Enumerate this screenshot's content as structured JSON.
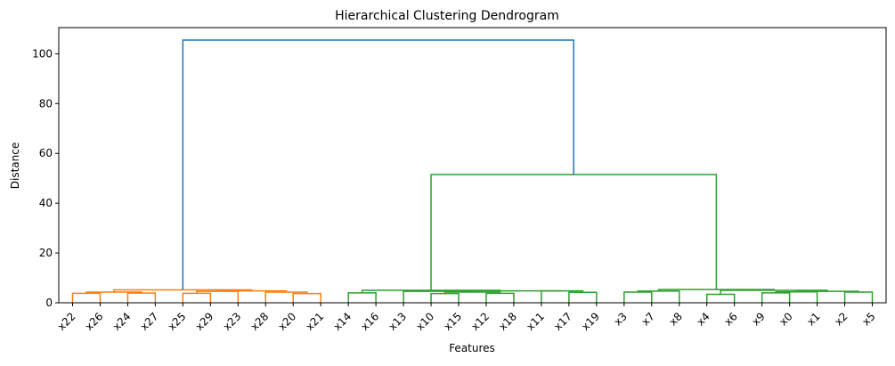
{
  "chart_data": {
    "type": "dendrogram",
    "title": "Hierarchical Clustering Dendrogram",
    "xlabel": "Features",
    "ylabel": "Distance",
    "ylim": [
      0,
      110.5
    ],
    "yticks": [
      0,
      20,
      40,
      60,
      80,
      100
    ],
    "grid": false,
    "legend": "none",
    "leaves": [
      "x22",
      "x26",
      "x24",
      "x27",
      "x25",
      "x29",
      "x23",
      "x28",
      "x20",
      "x21",
      "x14",
      "x16",
      "x13",
      "x10",
      "x15",
      "x12",
      "x18",
      "x11",
      "x17",
      "x19",
      "x3",
      "x7",
      "x8",
      "x4",
      "x6",
      "x9",
      "x0",
      "x1",
      "x2",
      "x5"
    ],
    "colors": {
      "above_threshold": "#1f77b4",
      "cluster_1": "#ff7f0e",
      "cluster_2": "#2ca02c"
    },
    "merges": [
      {
        "left": "x22",
        "right": "x26",
        "height": 3.8,
        "cluster": "cluster_1"
      },
      {
        "left": "x24",
        "right": "x27",
        "height": 3.9,
        "cluster": "cluster_1"
      },
      {
        "left": "x25",
        "right": "x29",
        "height": 3.8,
        "cluster": "cluster_1"
      },
      {
        "left": "x20",
        "right": "x21",
        "height": 3.7,
        "cluster": "cluster_1"
      },
      {
        "left": "x22+x26",
        "right": "x24+x27",
        "height": 4.3,
        "cluster": "cluster_1"
      },
      {
        "left": "x25+x29",
        "right": "x23",
        "height": 4.6,
        "cluster": "cluster_1"
      },
      {
        "left": "x28",
        "right": "x20+x21",
        "height": 4.3,
        "cluster": "cluster_1"
      },
      {
        "left": "x25+x29+x23",
        "right": "x28+x20+x21",
        "height": 4.8,
        "cluster": "cluster_1"
      },
      {
        "left": "x22+x26+x24+x27",
        "right": "x25+x29+x23+x28+x20+x21",
        "height": 5.2,
        "cluster": "cluster_1"
      },
      {
        "left": "x14",
        "right": "x16",
        "height": 4.0,
        "cluster": "cluster_2"
      },
      {
        "left": "x10",
        "right": "x15",
        "height": 3.7,
        "cluster": "cluster_2"
      },
      {
        "left": "x12",
        "right": "x18",
        "height": 3.8,
        "cluster": "cluster_2"
      },
      {
        "left": "x17",
        "right": "x19",
        "height": 4.2,
        "cluster": "cluster_2"
      },
      {
        "left": "x10+x15",
        "right": "x12+x18",
        "height": 4.3,
        "cluster": "cluster_2"
      },
      {
        "left": "x11",
        "right": "x17+x19",
        "height": 4.8,
        "cluster": "cluster_2"
      },
      {
        "left": "x13",
        "right": "x10+x15+x12+x18",
        "height": 4.6,
        "cluster": "cluster_2"
      },
      {
        "left": "x13+x10+x15+x12+x18",
        "right": "x11+x17+x19",
        "height": 4.8,
        "cluster": "cluster_2"
      },
      {
        "left": "x14+x16",
        "right": "x13+x10+x15+x12+x18+x11+x17+x19",
        "height": 5.0,
        "cluster": "cluster_2"
      },
      {
        "left": "x3",
        "right": "x7",
        "height": 4.3,
        "cluster": "cluster_2"
      },
      {
        "left": "x3+x7",
        "right": "x8",
        "height": 4.7,
        "cluster": "cluster_2"
      },
      {
        "left": "x4",
        "right": "x6",
        "height": 3.4,
        "cluster": "cluster_2"
      },
      {
        "left": "x9",
        "right": "x0",
        "height": 4.0,
        "cluster": "cluster_2"
      },
      {
        "left": "x9+x0",
        "right": "x1",
        "height": 4.4,
        "cluster": "cluster_2"
      },
      {
        "left": "x2",
        "right": "x5",
        "height": 4.3,
        "cluster": "cluster_2"
      },
      {
        "left": "x9+x0+x1",
        "right": "x2+x5",
        "height": 4.6,
        "cluster": "cluster_2"
      },
      {
        "left": "x4+x6",
        "right": "x9+x0+x1+x2+x5",
        "height": 5.0,
        "cluster": "cluster_2"
      },
      {
        "left": "x3+x7+x8",
        "right": "x4+x6+x9+x0+x1+x2+x5",
        "height": 5.3,
        "cluster": "cluster_2"
      },
      {
        "left": "x14..x19",
        "right": "x3..x5",
        "height": 51.5,
        "cluster": "cluster_2"
      },
      {
        "left": "x22..x21",
        "right": "x14..x5",
        "height": 105.5,
        "cluster": "above_threshold"
      }
    ]
  }
}
